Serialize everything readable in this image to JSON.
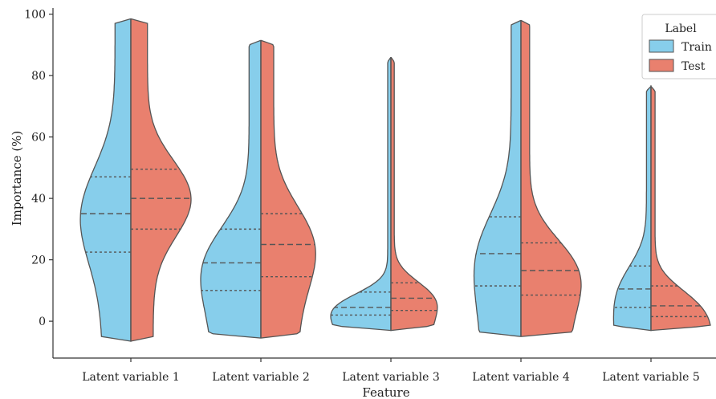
{
  "chart_data": {
    "type": "violin",
    "xlabel": "Feature",
    "ylabel": "Importance (%)",
    "ylim": [
      -12,
      102
    ],
    "yticks": [
      0,
      20,
      40,
      60,
      80,
      100
    ],
    "categories": [
      "Latent variable 1",
      "Latent variable 2",
      "Latent variable 3",
      "Latent variable 4",
      "Latent variable 5"
    ],
    "split": true,
    "inner": "quartile",
    "legend": {
      "title": "Label",
      "position": "top-right",
      "entries": [
        {
          "name": "Train",
          "color": "#87CEEB"
        },
        {
          "name": "Test",
          "color": "#E9806E"
        }
      ]
    },
    "series": [
      {
        "name": "Train",
        "color": "#87CEEB",
        "values": [
          {
            "min": -6.5,
            "max": 98.5,
            "q1": 22.5,
            "median": 35.0,
            "q3": 47.0
          },
          {
            "min": -5.5,
            "max": 91.5,
            "q1": 10.0,
            "median": 19.0,
            "q3": 30.0
          },
          {
            "min": -3.0,
            "max": 86.0,
            "q1": 2.0,
            "median": 4.5,
            "q3": 9.5
          },
          {
            "min": -5.0,
            "max": 98.0,
            "q1": 11.5,
            "median": 22.0,
            "q3": 34.0
          },
          {
            "min": -3.0,
            "max": 76.5,
            "q1": 4.5,
            "median": 10.5,
            "q3": 18.0
          }
        ]
      },
      {
        "name": "Test",
        "color": "#E9806E",
        "values": [
          {
            "min": -6.5,
            "max": 98.5,
            "q1": 30.0,
            "median": 40.0,
            "q3": 49.5
          },
          {
            "min": -5.5,
            "max": 91.5,
            "q1": 14.5,
            "median": 25.0,
            "q3": 35.0
          },
          {
            "min": -3.0,
            "max": 86.0,
            "q1": 3.5,
            "median": 7.5,
            "q3": 12.5
          },
          {
            "min": -5.0,
            "max": 98.0,
            "q1": 8.5,
            "median": 16.5,
            "q3": 25.5
          },
          {
            "min": -3.0,
            "max": 76.5,
            "q1": 1.5,
            "median": 5.0,
            "q3": 11.5
          }
        ]
      }
    ]
  }
}
